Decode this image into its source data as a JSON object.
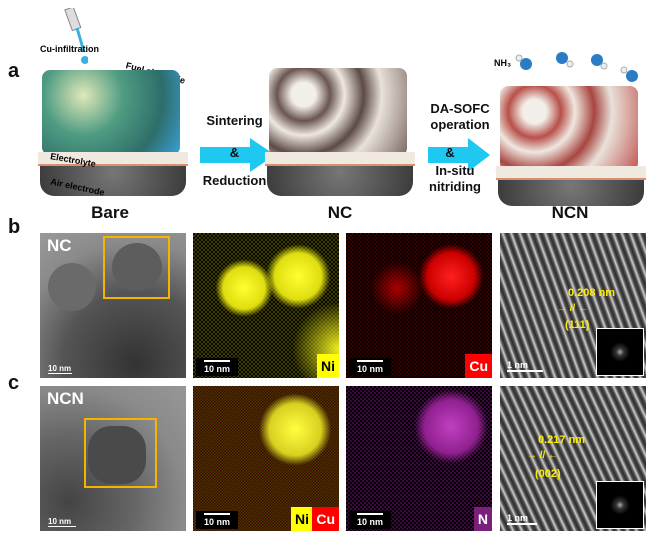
{
  "panel_a": {
    "label": "a",
    "cu_infiltration": "Cu-infiltration",
    "fuel_electrode": "Fuel electrode",
    "electrolyte": "Electrolyte",
    "air_electrode": "Air electrode",
    "nh3": "NH₃",
    "step1_top": "Sintering",
    "step1_mid": "&",
    "step1_bottom": "Reduction",
    "step2_top1": "DA-SOFC",
    "step2_top2": "operation",
    "step2_mid": "&",
    "step2_bottom1": "In-situ",
    "step2_bottom2": "nitriding",
    "captions": [
      "Bare",
      "NC",
      "NCN"
    ],
    "colors": {
      "bare": "#3f8f7a",
      "nc": "#6b5a55",
      "ncn": "#b8504a",
      "arrow": "#1ec8f0"
    }
  },
  "panel_b": {
    "label": "b",
    "tem_label": "NC",
    "tem_scale": "10 nm",
    "map1_scale": "10 nm",
    "map1_element": "Ni",
    "map2_scale": "10 nm",
    "map2_element": "Cu",
    "hrtem_spacing": "0.208 nm",
    "hrtem_plane": "(111)",
    "hrtem_scale": "1 nm"
  },
  "panel_c": {
    "label": "c",
    "tem_label": "NCN",
    "tem_scale": "10 nm",
    "map1_scale": "10 nm",
    "map1_element_a": "Ni",
    "map1_element_b": "Cu",
    "map2_scale": "10 nm",
    "map2_element": "N",
    "hrtem_spacing": "0.217 nm",
    "hrtem_plane": "(002)",
    "hrtem_scale": "1 nm"
  }
}
